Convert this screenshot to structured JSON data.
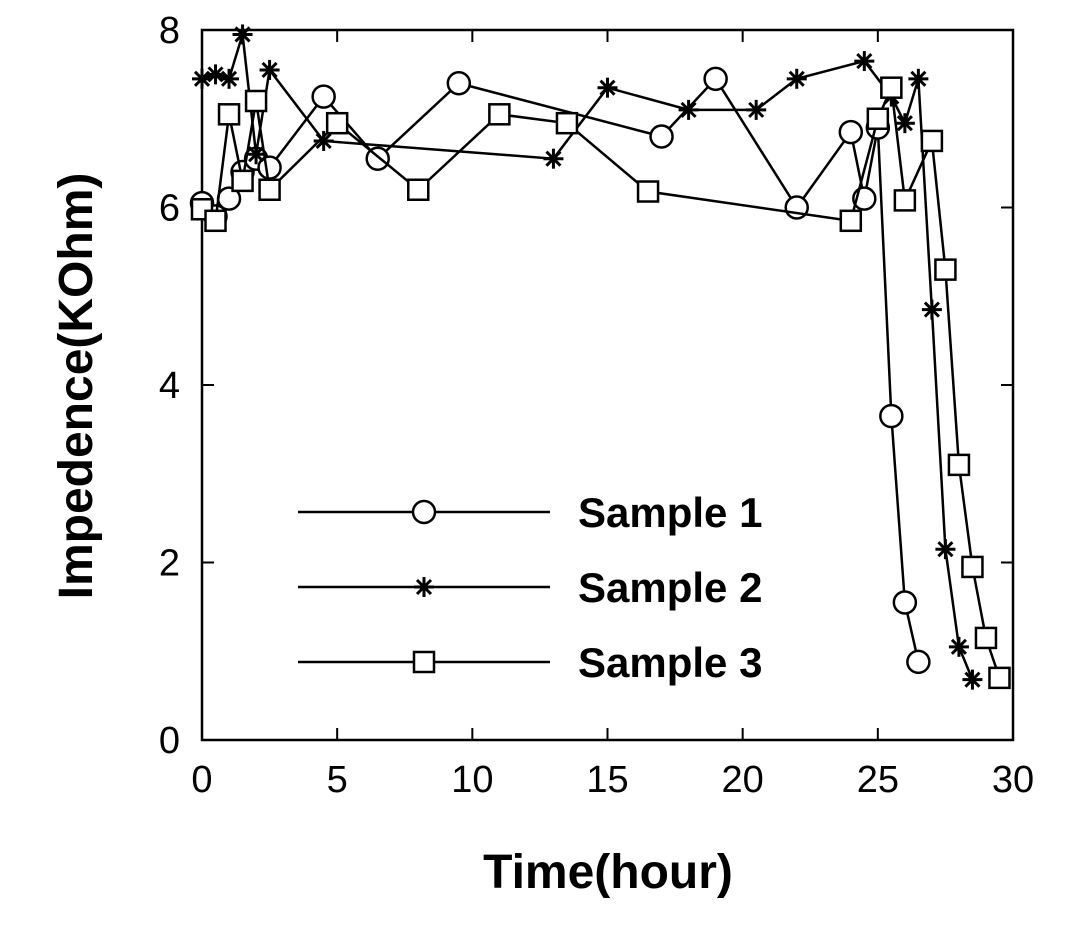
{
  "chart_data": {
    "type": "line",
    "title": "",
    "xlabel": "Time(hour)",
    "ylabel": "Impedence(KOhm)",
    "xlim": [
      0,
      30
    ],
    "ylim": [
      0,
      8
    ],
    "xticks": [
      0,
      5,
      10,
      15,
      20,
      25,
      30
    ],
    "yticks": [
      0,
      2,
      4,
      6,
      8
    ],
    "grid": false,
    "legend_position": "center-left",
    "series": [
      {
        "name": "Sample 1",
        "marker": "circle",
        "color": "#000000",
        "points": [
          [
            0,
            6.05
          ],
          [
            0.5,
            5.9
          ],
          [
            1,
            6.1
          ],
          [
            1.5,
            6.4
          ],
          [
            2,
            6.55
          ],
          [
            2.5,
            6.45
          ],
          [
            4.5,
            7.25
          ],
          [
            6.5,
            6.55
          ],
          [
            9.5,
            7.4
          ],
          [
            17,
            6.8
          ],
          [
            19,
            7.45
          ],
          [
            22,
            6.0
          ],
          [
            24,
            6.85
          ],
          [
            24.5,
            6.1
          ],
          [
            25,
            6.9
          ],
          [
            25.5,
            3.65
          ],
          [
            26,
            1.55
          ],
          [
            26.5,
            0.88
          ]
        ]
      },
      {
        "name": "Sample 2",
        "marker": "star",
        "color": "#000000",
        "points": [
          [
            0,
            7.45
          ],
          [
            0.5,
            7.5
          ],
          [
            1,
            7.45
          ],
          [
            1.5,
            7.95
          ],
          [
            2,
            6.6
          ],
          [
            2.5,
            7.55
          ],
          [
            4.5,
            6.75
          ],
          [
            13,
            6.55
          ],
          [
            15,
            7.35
          ],
          [
            18,
            7.1
          ],
          [
            20.5,
            7.1
          ],
          [
            22,
            7.45
          ],
          [
            24.5,
            7.65
          ],
          [
            25.5,
            7.25
          ],
          [
            26,
            6.95
          ],
          [
            26.5,
            7.45
          ],
          [
            27,
            4.85
          ],
          [
            27.5,
            2.15
          ],
          [
            28,
            1.05
          ],
          [
            28.5,
            0.68
          ]
        ]
      },
      {
        "name": "Sample 3",
        "marker": "square",
        "color": "#000000",
        "points": [
          [
            0,
            5.98
          ],
          [
            0.5,
            5.85
          ],
          [
            1,
            7.05
          ],
          [
            1.5,
            6.3
          ],
          [
            2,
            7.2
          ],
          [
            2.5,
            6.2
          ],
          [
            5,
            6.95
          ],
          [
            8,
            6.2
          ],
          [
            11,
            7.05
          ],
          [
            13.5,
            6.95
          ],
          [
            16.5,
            6.18
          ],
          [
            24,
            5.85
          ],
          [
            25,
            7.0
          ],
          [
            25.5,
            7.35
          ],
          [
            26,
            6.08
          ],
          [
            27,
            6.75
          ],
          [
            27.5,
            5.3
          ],
          [
            28,
            3.1
          ],
          [
            28.5,
            1.95
          ],
          [
            29,
            1.15
          ],
          [
            29.5,
            0.7
          ]
        ]
      }
    ]
  }
}
